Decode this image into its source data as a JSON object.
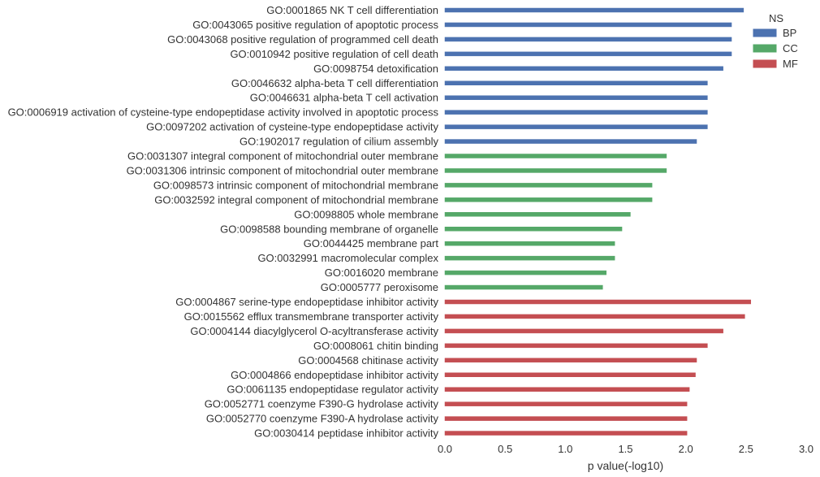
{
  "chart_data": {
    "type": "bar",
    "orientation": "horizontal",
    "xlabel": "p value(-log10)",
    "xlim": [
      0.0,
      3.0
    ],
    "xticks": [
      "0.0",
      "0.5",
      "1.0",
      "1.5",
      "2.0",
      "2.5",
      "3.0"
    ],
    "grid": false,
    "legend": {
      "title": "NS",
      "placement": "top-right",
      "entries": [
        {
          "name": "BP",
          "color": "#4c72b0"
        },
        {
          "name": "CC",
          "color": "#55a868"
        },
        {
          "name": "MF",
          "color": "#c44e52"
        }
      ]
    },
    "categories": [
      "GO:0001865 NK T cell differentiation",
      "GO:0043065 positive regulation of apoptotic process",
      "GO:0043068 positive regulation of programmed cell death",
      "GO:0010942 positive regulation of cell death",
      "GO:0098754 detoxification",
      "GO:0046632 alpha-beta T cell differentiation",
      "GO:0046631 alpha-beta T cell activation",
      "GO:0006919 activation of cysteine-type endopeptidase activity involved in apoptotic process",
      "GO:0097202 activation of cysteine-type endopeptidase activity",
      "GO:1902017 regulation of cilium assembly",
      "GO:0031307 integral component of mitochondrial outer membrane",
      "GO:0031306 intrinsic component of mitochondrial outer membrane",
      "GO:0098573 intrinsic component of mitochondrial membrane",
      "GO:0032592 integral component of mitochondrial membrane",
      "GO:0098805 whole membrane",
      "GO:0098588 bounding membrane of organelle",
      "GO:0044425 membrane part",
      "GO:0032991 macromolecular complex",
      "GO:0016020 membrane",
      "GO:0005777 peroxisome",
      "GO:0004867 serine-type endopeptidase inhibitor activity",
      "GO:0015562 efflux transmembrane transporter activity",
      "GO:0004144 diacylglycerol O-acyltransferase activity",
      "GO:0008061 chitin binding",
      "GO:0004568 chitinase activity",
      "GO:0004866 endopeptidase inhibitor activity",
      "GO:0061135 endopeptidase regulator activity",
      "GO:0052771 coenzyme F390-G hydrolase activity",
      "GO:0052770 coenzyme F390-A hydrolase activity",
      "GO:0030414 peptidase inhibitor activity"
    ],
    "values": [
      2.48,
      2.38,
      2.38,
      2.38,
      2.31,
      2.18,
      2.18,
      2.18,
      2.18,
      2.09,
      1.84,
      1.84,
      1.72,
      1.72,
      1.54,
      1.47,
      1.41,
      1.41,
      1.34,
      1.31,
      2.54,
      2.49,
      2.31,
      2.18,
      2.09,
      2.08,
      2.03,
      2.01,
      2.01,
      2.01
    ],
    "groups": [
      "BP",
      "BP",
      "BP",
      "BP",
      "BP",
      "BP",
      "BP",
      "BP",
      "BP",
      "BP",
      "CC",
      "CC",
      "CC",
      "CC",
      "CC",
      "CC",
      "CC",
      "CC",
      "CC",
      "CC",
      "MF",
      "MF",
      "MF",
      "MF",
      "MF",
      "MF",
      "MF",
      "MF",
      "MF",
      "MF"
    ]
  }
}
